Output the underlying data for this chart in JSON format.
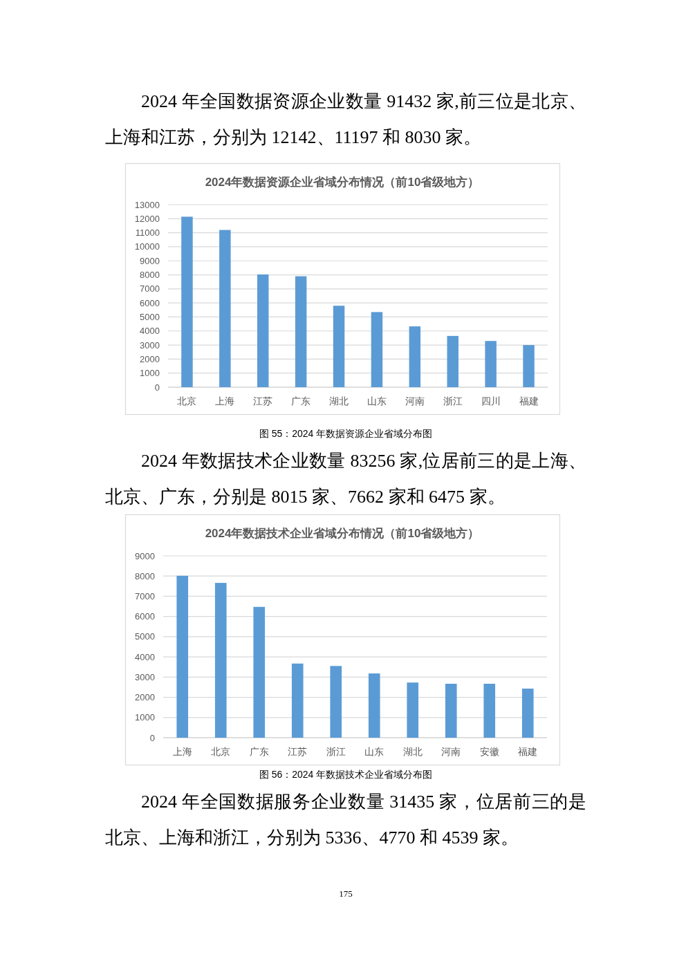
{
  "chart_data": [
    {
      "type": "bar",
      "title": "2024年数据资源企业省域分布情况（前10省级地方）",
      "categories": [
        "北京",
        "上海",
        "江苏",
        "广东",
        "湖北",
        "山东",
        "河南",
        "浙江",
        "四川",
        "福建"
      ],
      "values": [
        12142,
        11197,
        8030,
        7900,
        5800,
        5350,
        4330,
        3650,
        3290,
        3000
      ],
      "color": "#5b9bd5",
      "ylim": [
        0,
        13000
      ],
      "yticks": [
        0,
        1000,
        2000,
        3000,
        4000,
        5000,
        6000,
        7000,
        8000,
        9000,
        10000,
        11000,
        12000,
        13000
      ],
      "grid": "y",
      "annotations": [
        "2024 年全国数据资源企业数量 91432 家,前三位是北京、上海和江苏，分别为 12142、11197 和 8030 家。",
        "图 55：2024 年数据资源企业省域分布图"
      ]
    },
    {
      "type": "bar",
      "title": "2024年数据技术企业省域分布情况（前10省级地方）",
      "categories": [
        "上海",
        "北京",
        "广东",
        "江苏",
        "浙江",
        "山东",
        "湖北",
        "河南",
        "安徽",
        "福建"
      ],
      "values": [
        8015,
        7662,
        6475,
        3670,
        3550,
        3180,
        2730,
        2670,
        2670,
        2430
      ],
      "color": "#5b9bd5",
      "ylim": [
        0,
        9000
      ],
      "yticks": [
        0,
        1000,
        2000,
        3000,
        4000,
        5000,
        6000,
        7000,
        8000,
        9000
      ],
      "grid": "y",
      "annotations": [
        "2024 年数据技术企业数量 83256 家,位居前三的是上海、北京、广东，分别是 8015 家、7662 家和 6475 家。",
        "图 56：2024 年数据技术企业省域分布图",
        "2024 年全国数据服务企业数量 31435 家，位居前三的是北京、上海和浙江，分别为 5336、4770 和 4539 家。",
        "175"
      ]
    }
  ]
}
